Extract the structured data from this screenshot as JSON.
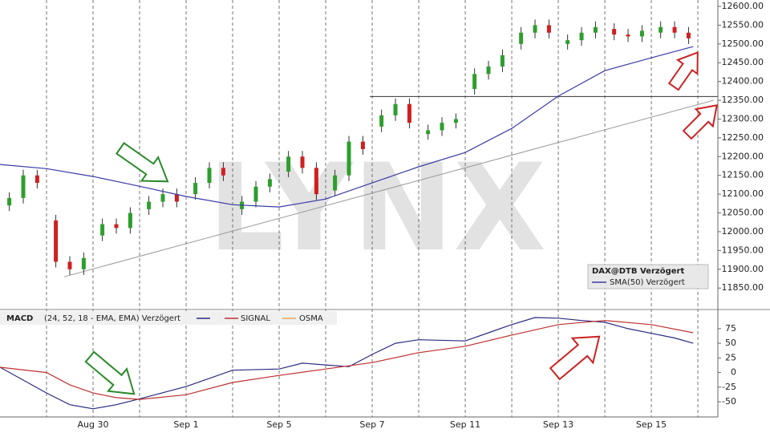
{
  "chart_data": [
    {
      "type": "candlestick",
      "watermark": "LYNX",
      "xlim": [
        0,
        15.43
      ],
      "ylim": [
        11795,
        12617
      ],
      "yticks": [
        {
          "value": 11850,
          "label": "11850.00"
        },
        {
          "value": 11900,
          "label": "11900.00"
        },
        {
          "value": 11950,
          "label": "11950.00"
        },
        {
          "value": 12000,
          "label": "12000.00"
        },
        {
          "value": 12050,
          "label": "12050.00"
        },
        {
          "value": 12100,
          "label": "12100.00"
        },
        {
          "value": 12150,
          "label": "12150.00"
        },
        {
          "value": 12200,
          "label": "12200.00"
        },
        {
          "value": 12250,
          "label": "12250.00"
        },
        {
          "value": 12300,
          "label": "12300.00"
        },
        {
          "value": 12350,
          "label": "12350.00"
        },
        {
          "value": 12400,
          "label": "12400.00"
        },
        {
          "value": 12450,
          "label": "12450.00"
        },
        {
          "value": 12500,
          "label": "12500.00"
        },
        {
          "value": 12550,
          "label": "12550.00"
        },
        {
          "value": 12600,
          "label": "12600.00"
        }
      ],
      "up_color": "#2e9e2e",
      "down_color": "#d02020",
      "series": [
        {
          "name": "DAX@DTB Verzögert",
          "kind": "candles",
          "x": [
            0.2,
            0.5,
            0.8,
            1.2,
            1.5,
            1.8,
            2.2,
            2.5,
            2.8,
            3.2,
            3.5,
            3.8,
            4.2,
            4.5,
            4.8,
            5.2,
            5.5,
            5.8,
            6.2,
            6.5,
            6.8,
            7.2,
            7.5,
            7.8,
            8.2,
            8.5,
            8.8,
            9.2,
            9.5,
            9.8,
            10.2,
            10.5,
            10.8,
            11.2,
            11.5,
            11.8,
            12.2,
            12.5,
            12.8,
            13.2,
            13.5,
            13.8,
            14.2,
            14.5,
            14.8
          ],
          "open": [
            12070,
            12090,
            12150,
            12030,
            11920,
            11900,
            11990,
            12020,
            12010,
            12060,
            12080,
            12100,
            12100,
            12130,
            12170,
            12060,
            12080,
            12120,
            12160,
            12200,
            12170,
            12110,
            12150,
            12240,
            12280,
            12310,
            12340,
            12260,
            12270,
            12290,
            12380,
            12420,
            12440,
            12500,
            12530,
            12550,
            12500,
            12510,
            12530,
            12540,
            12525,
            12520,
            12530,
            12545,
            12530
          ],
          "high": [
            12105,
            12165,
            12165,
            12045,
            11935,
            11945,
            12035,
            12035,
            12065,
            12095,
            12115,
            12115,
            12145,
            12185,
            12185,
            12095,
            12135,
            12155,
            12215,
            12215,
            12185,
            12165,
            12255,
            12255,
            12325,
            12355,
            12355,
            12285,
            12305,
            12315,
            12435,
            12455,
            12485,
            12545,
            12565,
            12565,
            12525,
            12545,
            12560,
            12555,
            12540,
            12550,
            12560,
            12560,
            12545
          ],
          "low": [
            12055,
            12075,
            12115,
            11905,
            11885,
            11885,
            11975,
            11995,
            11995,
            12045,
            12065,
            12065,
            12085,
            12115,
            12135,
            12045,
            12065,
            12105,
            12145,
            12155,
            12085,
            12095,
            12135,
            12205,
            12265,
            12295,
            12275,
            12245,
            12255,
            12275,
            12365,
            12405,
            12425,
            12485,
            12515,
            12515,
            12485,
            12495,
            12515,
            12510,
            12505,
            12505,
            12515,
            12515,
            12500
          ],
          "close": [
            12090,
            12150,
            12130,
            11920,
            11900,
            11930,
            12020,
            12010,
            12050,
            12080,
            12100,
            12080,
            12130,
            12170,
            12150,
            12080,
            12120,
            12140,
            12200,
            12170,
            12100,
            12150,
            12240,
            12220,
            12310,
            12340,
            12290,
            12270,
            12290,
            12300,
            12420,
            12440,
            12470,
            12530,
            12550,
            12530,
            12510,
            12530,
            12545,
            12525,
            12520,
            12535,
            12545,
            12530,
            12515
          ]
        },
        {
          "name": "SMA(50) Verzögert",
          "kind": "line",
          "color": "#3a3aa8",
          "x": [
            0,
            1,
            2,
            3,
            4,
            5,
            6,
            7,
            8,
            9,
            10,
            11,
            12,
            13,
            14,
            14.9
          ],
          "values": [
            12179,
            12168,
            12147,
            12121,
            12094,
            12072,
            12066,
            12087,
            12130,
            12173,
            12211,
            12275,
            12361,
            12429,
            12463,
            12493
          ]
        }
      ],
      "lines": [
        {
          "color": "#999999",
          "x": [
            1.38,
            15.34
          ],
          "values": [
            11880,
            12350
          ]
        },
        {
          "color": "#333333",
          "x": [
            7.95,
            15.43
          ],
          "values": [
            12360,
            12360
          ]
        }
      ]
    },
    {
      "type": "line",
      "title": "MACD",
      "subtitle": "(24, 52, 18 - EMA, EMA) Verzögert",
      "xlim": [
        0,
        15.43
      ],
      "ylim": [
        -76,
        105
      ],
      "yticks": [
        75,
        50,
        25,
        0,
        -25,
        -50
      ],
      "xticks": [
        {
          "value": 2,
          "label": "Aug 30"
        },
        {
          "value": 4,
          "label": "Sep 1"
        },
        {
          "value": 6,
          "label": "Sep 5"
        },
        {
          "value": 8,
          "label": "Sep 7"
        },
        {
          "value": 10,
          "label": "Sep 11"
        },
        {
          "value": 12,
          "label": "Sep 13"
        },
        {
          "value": 14,
          "label": "Sep 15"
        }
      ],
      "x_minor_ticks": [
        1,
        3,
        5,
        7,
        9,
        11,
        13,
        15
      ],
      "series": [
        {
          "color": "#2a2a80",
          "x": [
            0,
            1,
            1.5,
            2,
            2.5,
            3,
            4,
            5,
            6,
            6.5,
            7,
            7.5,
            8,
            8.5,
            9,
            10,
            10.5,
            11,
            11.5,
            12,
            12.5,
            13,
            13.5,
            14,
            14.5,
            14.9
          ],
          "values": [
            9,
            -35,
            -55,
            -62,
            -55,
            -45,
            -24,
            4,
            6,
            16,
            13,
            10,
            31,
            50,
            56,
            54,
            68,
            82,
            94,
            93,
            89,
            86,
            75,
            67,
            59,
            50
          ]
        },
        {
          "name": "SIGNAL",
          "color": "#c03030",
          "x": [
            0,
            1,
            1.5,
            2,
            2.5,
            3,
            4,
            5,
            6,
            7,
            8,
            9,
            10,
            11,
            12,
            13,
            14,
            14.9
          ],
          "values": [
            9,
            0,
            -21,
            -35,
            -43,
            -46,
            -38,
            -17,
            -5,
            6,
            17,
            34,
            45,
            64,
            82,
            89,
            82,
            68
          ]
        },
        {
          "name": "OSMA",
          "color": "#e8a860",
          "x": [],
          "values": []
        }
      ]
    }
  ]
}
